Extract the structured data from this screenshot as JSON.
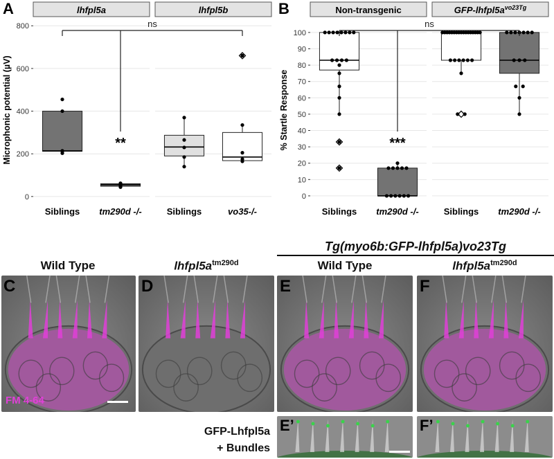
{
  "panels": {
    "A": "A",
    "B": "B",
    "C": "C",
    "D": "D",
    "E": "E",
    "F": "F",
    "E2": "E’",
    "F2": "F’"
  },
  "chart_data": [
    {
      "type": "boxplot",
      "facets": [
        "lhfpl5a",
        "lhfpl5b"
      ],
      "categories": [
        "Siblings",
        "tm290d -/-",
        "Siblings",
        "vo35-/-"
      ],
      "ylabel": "Microphonic potential (µV)",
      "yticks": [
        0,
        200,
        400,
        600,
        800
      ],
      "ylim": [
        -20,
        830
      ],
      "significance": "ns",
      "annotation": "**",
      "boxes": [
        {
          "q1": 212,
          "median": 214,
          "q3": 400,
          "wlo": 205,
          "whi": 400,
          "fill": "#737373",
          "outliers": []
        },
        {
          "q1": 48,
          "median": 55,
          "q3": 60,
          "wlo": 40,
          "whi": 62,
          "fill": "#737373",
          "outliers": []
        },
        {
          "q1": 190,
          "median": 232,
          "q3": 287,
          "wlo": 140,
          "whi": 370,
          "fill": "#e0e0e0",
          "outliers": []
        },
        {
          "q1": 168,
          "median": 185,
          "q3": 300,
          "wlo": 160,
          "whi": 335,
          "fill": "#ffffff",
          "outliers": [
            660
          ]
        }
      ],
      "points": [
        [
          455,
          400,
          214,
          212,
          203
        ],
        [
          62,
          60,
          58,
          55,
          50,
          44
        ],
        [
          370,
          265,
          230,
          185,
          140
        ],
        [
          660,
          335,
          205,
          175,
          165
        ]
      ]
    },
    {
      "type": "boxplot",
      "facets": [
        "Non-transgenic",
        "GFP-lhfpl5a vo23Tg"
      ],
      "categories": [
        "Siblings",
        "tm290d -/-",
        "Siblings",
        "tm290d -/-"
      ],
      "ylabel": "% Startle Response",
      "yticks": [
        0,
        10,
        20,
        30,
        40,
        50,
        60,
        70,
        80,
        90,
        100
      ],
      "ylim": [
        -3,
        108
      ],
      "significance": "ns",
      "annotation": "***",
      "boxes": [
        {
          "q1": 77,
          "median": 83,
          "q3": 100,
          "wlo": 50,
          "whi": 100,
          "fill": "#ffffff",
          "outliers": [
            33,
            17
          ]
        },
        {
          "q1": 0,
          "median": 0,
          "q3": 17,
          "wlo": 0,
          "whi": 20,
          "fill": "#737373",
          "outliers": []
        },
        {
          "q1": 83,
          "median": 100,
          "q3": 100,
          "wlo": 75,
          "whi": 100,
          "fill": "#ffffff",
          "outliers": [
            50
          ]
        },
        {
          "q1": 75,
          "median": 83,
          "q3": 100,
          "wlo": 50,
          "whi": 100,
          "fill": "#737373",
          "outliers": []
        }
      ],
      "points": [
        [
          100,
          100,
          100,
          100,
          100,
          100,
          100,
          100,
          83,
          83,
          83,
          83,
          80,
          75,
          67,
          60,
          50,
          33,
          17
        ],
        [
          20,
          17,
          17,
          17,
          17,
          17,
          0,
          0,
          0,
          0,
          0,
          0
        ],
        [
          100,
          100,
          100,
          100,
          100,
          100,
          100,
          100,
          100,
          100,
          100,
          100,
          100,
          100,
          100,
          100,
          100,
          83,
          83,
          83,
          83,
          83,
          83,
          75,
          50,
          50
        ],
        [
          100,
          100,
          100,
          100,
          100,
          100,
          100,
          83,
          83,
          83,
          67,
          67,
          60,
          50
        ]
      ]
    }
  ],
  "labels": {
    "facetA1": "lhfpl5a",
    "facetA2": "lhfpl5b",
    "facetB1": "Non-transgenic",
    "facetB2_main": "GFP-lhfpl5a",
    "facetB2_sup": "vo23Tg",
    "xA1": "Siblings",
    "xA2": "tm290d -/-",
    "xA3": "Siblings",
    "xA4": "vo35-/-",
    "xB1": "Siblings",
    "xB2": "tm290d -/-",
    "xB3": "Siblings",
    "xB4": "tm290d -/-",
    "ylabelA": "Microphonic potential (µV)",
    "ylabelB": "% Startle Response",
    "ns": "ns",
    "starsA": "**",
    "starsB": "***"
  },
  "micro": {
    "tg_header": "Tg(myo6b:GFP-lhfpl5a)vo23Tg",
    "title_c": "Wild Type",
    "title_d_main": "lhfpl5a",
    "title_d_sup": "tm290d",
    "title_e": "Wild Type",
    "title_f_main": "lhfpl5a",
    "title_f_sup": "tm290d",
    "stain": "FM 4-64",
    "gfp_line1": "GFP-Lhfpl5a",
    "gfp_line2": "+ Bundles"
  },
  "colors": {
    "magenta": "#e040d8",
    "green": "#39d34a",
    "box_dark": "#737373",
    "strip": "#e3e3e3"
  }
}
